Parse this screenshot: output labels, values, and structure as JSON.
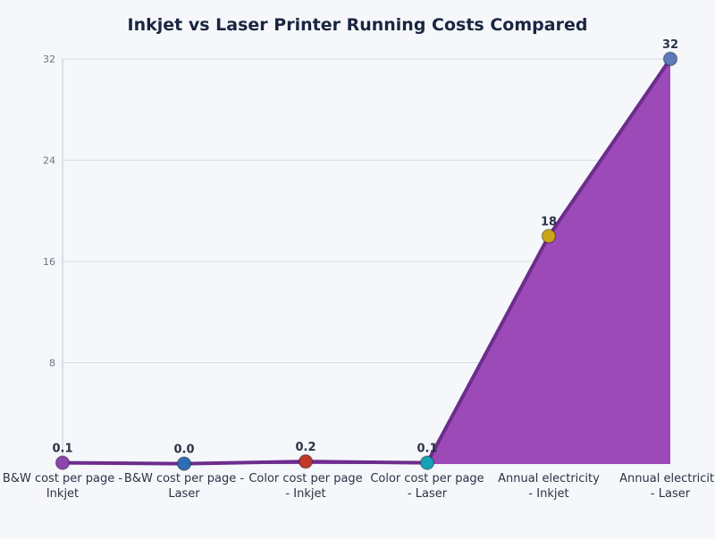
{
  "chart_data": {
    "type": "area",
    "title": "Inkjet vs Laser Printer Running Costs Compared",
    "categories": [
      [
        "B&W cost per page -",
        "Inkjet"
      ],
      [
        "B&W cost per page -",
        "Laser"
      ],
      [
        "Color cost per page",
        "- Inkjet"
      ],
      [
        "Color cost per page",
        "- Laser"
      ],
      [
        "Annual electricity",
        "- Inkjet"
      ],
      [
        "Annual electricity",
        "- Laser"
      ]
    ],
    "values": [
      0.1,
      0.03,
      0.2,
      0.1,
      18,
      32
    ],
    "data_labels": [
      "0.1",
      "0.0",
      "0.2",
      "0.1",
      "18",
      "32"
    ],
    "marker_colors": [
      "#8e44ad",
      "#2e6db4",
      "#c0392b",
      "#17a2b8",
      "#c9a61a",
      "#5b7bba"
    ],
    "line_color": "#6c2d8c",
    "fill_color": "#9b4ab8",
    "ylim": [
      0,
      32
    ],
    "yticks": [
      8,
      16,
      24,
      32
    ],
    "grid": true,
    "xlabel": "",
    "ylabel": ""
  }
}
